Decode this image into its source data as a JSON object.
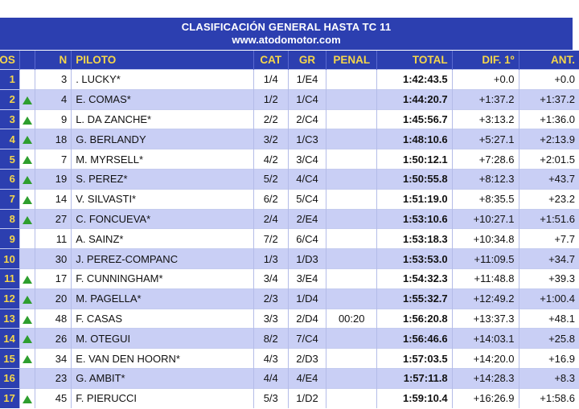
{
  "title": "CLASIFICACIÓN GENERAL HASTA TC 11",
  "site": "www.atodomotor.com",
  "headers": {
    "pos": "OS",
    "n": "N",
    "piloto": "PILOTO",
    "cat": "CAT",
    "gr": "GR",
    "penal": "PENAL",
    "total": "TOTAL",
    "dif": "DIF. 1º",
    "ant": "ANT."
  },
  "rows": [
    {
      "pos": "1",
      "up": false,
      "n": "3",
      "piloto": ". LUCKY*",
      "cat": "1/4",
      "gr": "1/E4",
      "penal": "",
      "total": "1:42:43.5",
      "dif": "+0.0",
      "ant": "+0.0"
    },
    {
      "pos": "2",
      "up": true,
      "n": "4",
      "piloto": "E. COMAS*",
      "cat": "1/2",
      "gr": "1/C4",
      "penal": "",
      "total": "1:44:20.7",
      "dif": "+1:37.2",
      "ant": "+1:37.2"
    },
    {
      "pos": "3",
      "up": true,
      "n": "9",
      "piloto": "L. DA ZANCHE*",
      "cat": "2/2",
      "gr": "2/C4",
      "penal": "",
      "total": "1:45:56.7",
      "dif": "+3:13.2",
      "ant": "+1:36.0"
    },
    {
      "pos": "4",
      "up": true,
      "n": "18",
      "piloto": "G. BERLANDY",
      "cat": "3/2",
      "gr": "1/C3",
      "penal": "",
      "total": "1:48:10.6",
      "dif": "+5:27.1",
      "ant": "+2:13.9"
    },
    {
      "pos": "5",
      "up": true,
      "n": "7",
      "piloto": "M. MYRSELL*",
      "cat": "4/2",
      "gr": "3/C4",
      "penal": "",
      "total": "1:50:12.1",
      "dif": "+7:28.6",
      "ant": "+2:01.5"
    },
    {
      "pos": "6",
      "up": true,
      "n": "19",
      "piloto": "S. PEREZ*",
      "cat": "5/2",
      "gr": "4/C4",
      "penal": "",
      "total": "1:50:55.8",
      "dif": "+8:12.3",
      "ant": "+43.7"
    },
    {
      "pos": "7",
      "up": true,
      "n": "14",
      "piloto": "V. SILVASTI*",
      "cat": "6/2",
      "gr": "5/C4",
      "penal": "",
      "total": "1:51:19.0",
      "dif": "+8:35.5",
      "ant": "+23.2"
    },
    {
      "pos": "8",
      "up": true,
      "n": "27",
      "piloto": "C. FONCUEVA*",
      "cat": "2/4",
      "gr": "2/E4",
      "penal": "",
      "total": "1:53:10.6",
      "dif": "+10:27.1",
      "ant": "+1:51.6"
    },
    {
      "pos": "9",
      "up": false,
      "n": "11",
      "piloto": "A. SAINZ*",
      "cat": "7/2",
      "gr": "6/C4",
      "penal": "",
      "total": "1:53:18.3",
      "dif": "+10:34.8",
      "ant": "+7.7"
    },
    {
      "pos": "10",
      "up": false,
      "n": "30",
      "piloto": "J. PEREZ-COMPANC",
      "cat": "1/3",
      "gr": "1/D3",
      "penal": "",
      "total": "1:53:53.0",
      "dif": "+11:09.5",
      "ant": "+34.7"
    },
    {
      "pos": "11",
      "up": true,
      "n": "17",
      "piloto": "F. CUNNINGHAM*",
      "cat": "3/4",
      "gr": "3/E4",
      "penal": "",
      "total": "1:54:32.3",
      "dif": "+11:48.8",
      "ant": "+39.3"
    },
    {
      "pos": "12",
      "up": true,
      "n": "20",
      "piloto": "M. PAGELLA*",
      "cat": "2/3",
      "gr": "1/D4",
      "penal": "",
      "total": "1:55:32.7",
      "dif": "+12:49.2",
      "ant": "+1:00.4"
    },
    {
      "pos": "13",
      "up": true,
      "n": "48",
      "piloto": "F. CASAS",
      "cat": "3/3",
      "gr": "2/D4",
      "penal": "00:20",
      "total": "1:56:20.8",
      "dif": "+13:37.3",
      "ant": "+48.1"
    },
    {
      "pos": "14",
      "up": true,
      "n": "26",
      "piloto": "M. OTEGUI",
      "cat": "8/2",
      "gr": "7/C4",
      "penal": "",
      "total": "1:56:46.6",
      "dif": "+14:03.1",
      "ant": "+25.8"
    },
    {
      "pos": "15",
      "up": true,
      "n": "34",
      "piloto": "E. VAN DEN HOORN*",
      "cat": "4/3",
      "gr": "2/D3",
      "penal": "",
      "total": "1:57:03.5",
      "dif": "+14:20.0",
      "ant": "+16.9"
    },
    {
      "pos": "16",
      "up": false,
      "n": "23",
      "piloto": "G. AMBIT*",
      "cat": "4/4",
      "gr": "4/E4",
      "penal": "",
      "total": "1:57:11.8",
      "dif": "+14:28.3",
      "ant": "+8.3"
    },
    {
      "pos": "17",
      "up": true,
      "n": "45",
      "piloto": "F. PIERUCCI",
      "cat": "5/3",
      "gr": "1/D2",
      "penal": "",
      "total": "1:59:10.4",
      "dif": "+16:26.9",
      "ant": "+1:58.6"
    }
  ]
}
